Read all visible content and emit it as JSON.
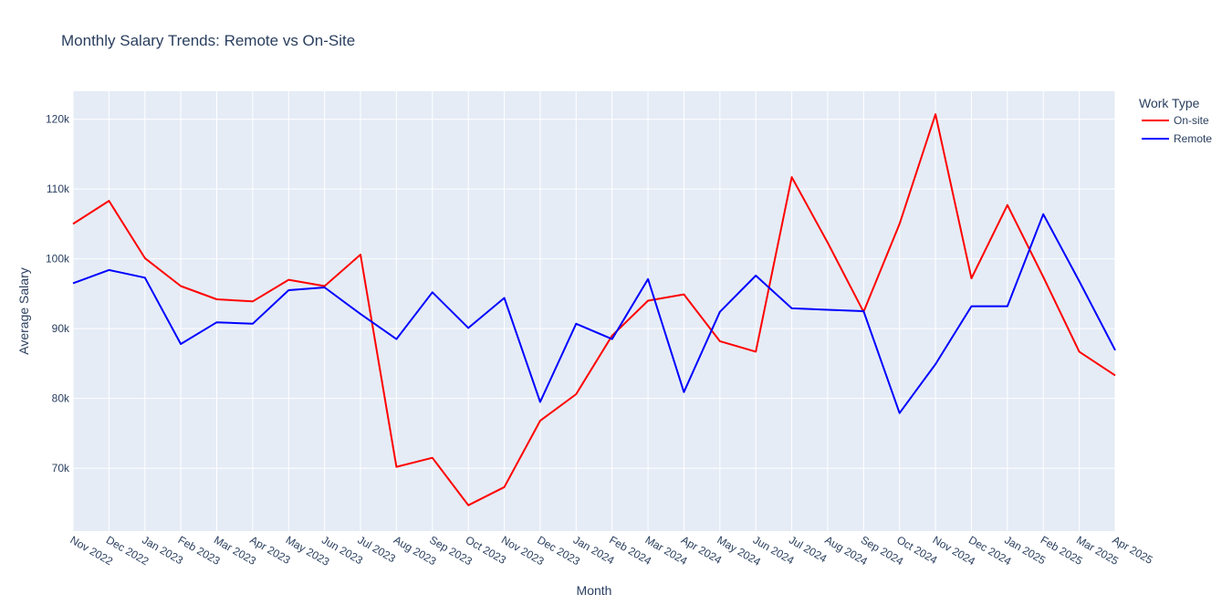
{
  "chart_data": {
    "type": "line",
    "title": "Monthly Salary Trends: Remote vs On-Site",
    "xlabel": "Month",
    "ylabel": "Average Salary",
    "ylim": [
      61000,
      124000
    ],
    "yticks": [
      70000,
      80000,
      90000,
      100000,
      110000,
      120000
    ],
    "ytick_labels": [
      "70k",
      "80k",
      "90k",
      "100k",
      "110k",
      "120k"
    ],
    "categories": [
      "Nov 2022",
      "Dec 2022",
      "Jan 2023",
      "Feb 2023",
      "Mar 2023",
      "Apr 2023",
      "May 2023",
      "Jun 2023",
      "Jul 2023",
      "Aug 2023",
      "Sep 2023",
      "Oct 2023",
      "Nov 2023",
      "Dec 2023",
      "Jan 2024",
      "Feb 2024",
      "Mar 2024",
      "Apr 2024",
      "May 2024",
      "Jun 2024",
      "Jul 2024",
      "Aug 2024",
      "Sep 2024",
      "Oct 2024",
      "Nov 2024",
      "Dec 2024",
      "Jan 2025",
      "Feb 2025",
      "Mar 2025",
      "Apr 2025"
    ],
    "grid": true,
    "legend_title": "Work Type",
    "legend_position": "top-right",
    "series": [
      {
        "name": "On-site",
        "color": "#ff0000",
        "values": [
          105000,
          108300,
          100100,
          96100,
          94200,
          93900,
          97000,
          96100,
          100600,
          70200,
          71500,
          64700,
          67300,
          76800,
          80600,
          89000,
          94000,
          94900,
          88200,
          86700,
          111700,
          102300,
          92400,
          105000,
          120700,
          97200,
          107700,
          97400,
          86700,
          83300
        ]
      },
      {
        "name": "Remote",
        "color": "#0000ff",
        "values": [
          96500,
          98400,
          97300,
          87800,
          90900,
          90700,
          95500,
          95900,
          92100,
          88500,
          95200,
          90100,
          94400,
          79500,
          90700,
          88500,
          97100,
          80900,
          92400,
          97600,
          92900,
          92700,
          92500,
          77900,
          84900,
          93200,
          93200,
          106400,
          96800,
          86900
        ]
      }
    ]
  }
}
